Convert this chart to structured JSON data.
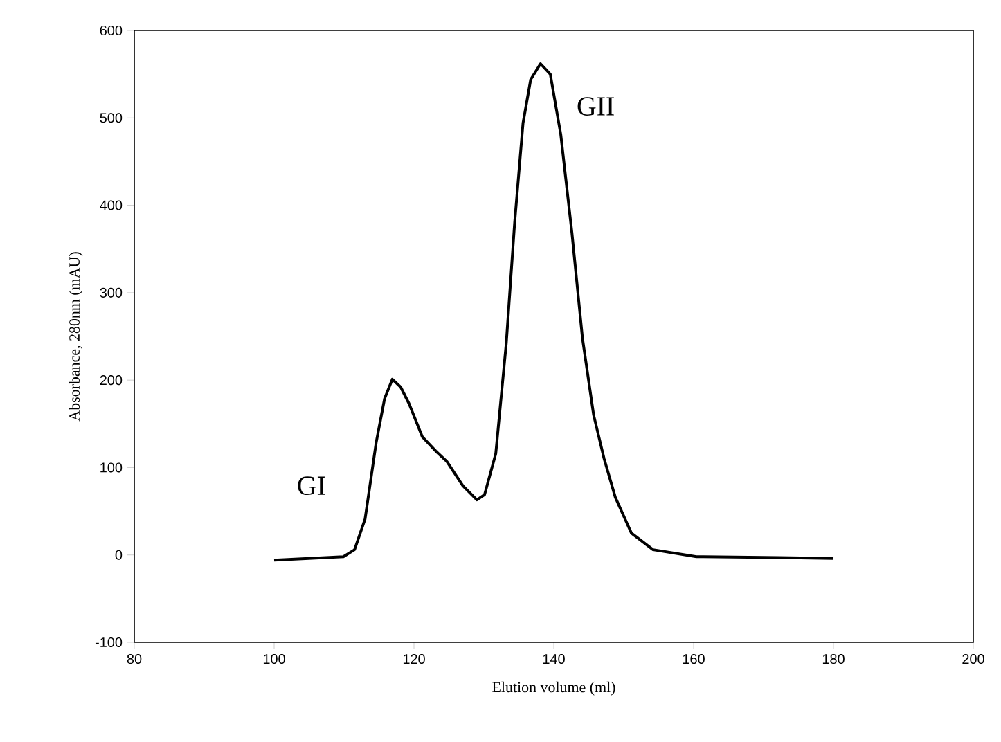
{
  "chart_data": {
    "type": "line",
    "xlabel": "Elution volume (ml)",
    "ylabel": "Absorbance, 280nm (mAU)",
    "xlim": [
      80,
      200
    ],
    "ylim": [
      -100,
      600
    ],
    "xticks": [
      80,
      100,
      120,
      140,
      160,
      180,
      200
    ],
    "yticks": [
      -100,
      0,
      100,
      200,
      300,
      400,
      500,
      600
    ],
    "grid": false,
    "marker": "none",
    "line_style": "solid",
    "annotations": [
      "GI",
      "GII"
    ],
    "series": [
      {
        "color": "#000000",
        "x": [
          100,
          109.9,
          111.5,
          113,
          114.6,
          115.8,
          116.9,
          118.1,
          119.3,
          121.2,
          123.1,
          124.7,
          127,
          129,
          130.1,
          131.7,
          133.2,
          134.4,
          135.6,
          136.7,
          138.1,
          139.5,
          141,
          142.6,
          144.1,
          145.7,
          147.2,
          148.8,
          151.1,
          154.2,
          160.4,
          172.1,
          180
        ],
        "values": [
          -6,
          -2,
          6,
          41,
          129,
          179,
          201,
          192,
          173,
          135,
          119,
          107,
          79,
          63,
          69,
          116,
          242,
          380,
          494,
          544,
          562,
          550,
          481,
          368,
          248,
          160,
          110,
          66,
          25,
          6,
          -2,
          -3,
          -4
        ]
      }
    ]
  }
}
